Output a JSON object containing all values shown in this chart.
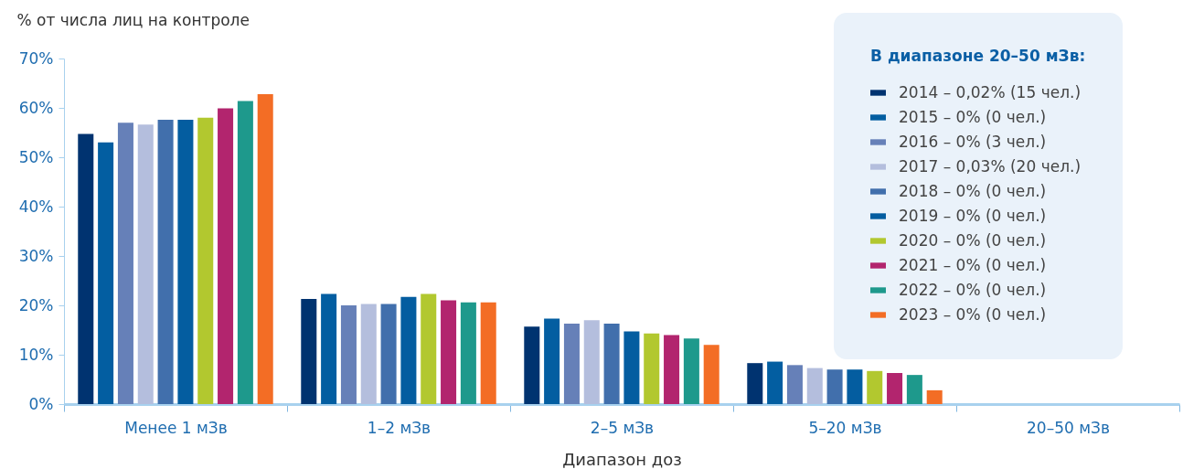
{
  "chart_data": {
    "type": "bar",
    "xlabel": "Диапазон доз",
    "ylabel": "% от числа лиц на контроле",
    "legend_title": "В диапазоне 20–50 мЗв:",
    "categories": [
      "Менее 1 мЗв",
      "1–2 мЗв",
      "2–5 мЗв",
      "5–20 мЗв",
      "20–50 мЗв"
    ],
    "series": [
      {
        "name": "2014 – 0,02% (15 чел.)",
        "color": "#003370",
        "values": [
          54.7,
          21.3,
          15.7,
          8.3,
          null
        ]
      },
      {
        "name": "2015 – 0% (0 чел.)",
        "color": "#035ea1",
        "values": [
          53.0,
          22.3,
          17.3,
          8.6,
          null
        ]
      },
      {
        "name": "2016 – 0% (3 чел.)",
        "color": "#6680b8",
        "values": [
          57.0,
          20.0,
          16.3,
          7.9,
          null
        ]
      },
      {
        "name": "2017 – 0,03% (20 чел.)",
        "color": "#b4bedd",
        "values": [
          56.6,
          20.3,
          17.0,
          7.3,
          null
        ]
      },
      {
        "name": "2018 – 0% (0 чел.)",
        "color": "#416fac",
        "values": [
          57.6,
          20.3,
          16.3,
          7.0,
          null
        ]
      },
      {
        "name": "2019 – 0% (0 чел.)",
        "color": "#045da0",
        "values": [
          57.6,
          21.7,
          14.7,
          7.0,
          null
        ]
      },
      {
        "name": "2020 – 0% (0 чел.)",
        "color": "#b2c82f",
        "values": [
          58.0,
          22.3,
          14.3,
          6.7,
          null
        ]
      },
      {
        "name": "2021 – 0% (0 чел.)",
        "color": "#b2256e",
        "values": [
          59.9,
          21.0,
          14.0,
          6.3,
          null
        ]
      },
      {
        "name": "2022 – 0% (0 чел.)",
        "color": "#1e998c",
        "values": [
          61.4,
          20.6,
          13.3,
          5.9,
          null
        ]
      },
      {
        "name": "2023 – 0% (0 чел.)",
        "color": "#f36d25",
        "values": [
          62.8,
          20.6,
          12.0,
          2.8,
          null
        ]
      }
    ],
    "ylim": [
      0,
      70
    ],
    "yticks": [
      {
        "value": 0,
        "label": "0%"
      },
      {
        "value": 10,
        "label": "10%"
      },
      {
        "value": 20,
        "label": "20%"
      },
      {
        "value": 30,
        "label": "30%"
      },
      {
        "value": 40,
        "label": "40%"
      },
      {
        "value": 50,
        "label": "50%"
      },
      {
        "value": 60,
        "label": "60%"
      },
      {
        "value": 70,
        "label": "70%"
      }
    ],
    "grid": false,
    "legend": "top right"
  }
}
